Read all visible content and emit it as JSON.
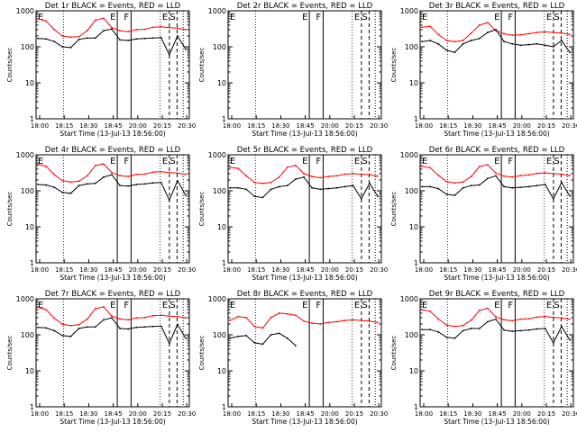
{
  "chart_data": {
    "type": "line",
    "yscale": "log",
    "ylim": [
      1,
      1000
    ],
    "y_ticks": [
      1,
      10,
      100,
      1000
    ],
    "y_tick_labels": [
      "1",
      "10",
      "100",
      "1000"
    ],
    "ylabel": "Counts/sec",
    "xlabel": "Start Time (13-Jul-13 18:56:00)",
    "x_tick_labels": [
      "18:00",
      "18:15",
      "18:30",
      "18:45",
      "20:00",
      "20:15",
      "20:30"
    ],
    "series_colors": {
      "events": "#000000",
      "lld": "#ff0000"
    },
    "markers": [
      {
        "label": "E",
        "style": "solid"
      },
      {
        "label": "F",
        "style": "solid"
      },
      {
        "label": "E",
        "style": "dashed"
      },
      {
        "label": "S",
        "style": "dashed"
      },
      {
        "label": "",
        "style": "dotted"
      }
    ],
    "panels": [
      {
        "title": "Det 1r BLACK = Events, RED = LLD",
        "has_data": true,
        "events": [
          170,
          165,
          140,
          100,
          95,
          160,
          175,
          175,
          280,
          310,
          155,
          150,
          165,
          170,
          175,
          180,
          60,
          200,
          85
        ],
        "lld": [
          600,
          520,
          300,
          200,
          185,
          190,
          280,
          550,
          620,
          340,
          280,
          265,
          300,
          305,
          350,
          360,
          340,
          330,
          300
        ]
      },
      {
        "title": "Det 2r BLACK = Events, RED = LLD",
        "has_data": false,
        "events": [],
        "lld": []
      },
      {
        "title": "Det 3r BLACK = Events, RED = LLD",
        "has_data": true,
        "events": [
          140,
          150,
          120,
          80,
          70,
          120,
          150,
          170,
          250,
          300,
          140,
          120,
          110,
          115,
          120,
          110,
          100,
          150,
          70
        ],
        "lld": [
          350,
          370,
          220,
          150,
          140,
          150,
          240,
          400,
          470,
          280,
          230,
          210,
          215,
          230,
          250,
          260,
          250,
          240,
          220
        ]
      },
      {
        "title": "Det 4r BLACK = Events, RED = LLD",
        "has_data": true,
        "events": [
          150,
          145,
          125,
          90,
          85,
          140,
          155,
          160,
          240,
          280,
          140,
          135,
          150,
          155,
          165,
          170,
          55,
          190,
          75
        ],
        "lld": [
          550,
          480,
          280,
          190,
          175,
          185,
          260,
          500,
          560,
          320,
          265,
          250,
          285,
          290,
          330,
          340,
          320,
          310,
          285
        ]
      },
      {
        "title": "Det 5r BLACK = Events, RED = LLD",
        "has_data": true,
        "events": [
          120,
          120,
          110,
          70,
          65,
          110,
          130,
          140,
          210,
          240,
          120,
          110,
          115,
          120,
          130,
          140,
          60,
          160,
          70
        ],
        "lld": [
          450,
          420,
          260,
          170,
          160,
          170,
          240,
          450,
          510,
          300,
          250,
          230,
          250,
          260,
          290,
          300,
          290,
          280,
          255
        ]
      },
      {
        "title": "Det 6r BLACK = Events, RED = LLD",
        "has_data": true,
        "events": [
          130,
          130,
          115,
          80,
          75,
          120,
          140,
          145,
          220,
          260,
          130,
          120,
          125,
          130,
          140,
          150,
          60,
          170,
          72
        ],
        "lld": [
          480,
          440,
          270,
          180,
          165,
          175,
          250,
          470,
          530,
          310,
          255,
          240,
          265,
          275,
          305,
          315,
          300,
          290,
          265
        ]
      },
      {
        "title": "Det 7r BLACK = Events, RED = LLD",
        "has_data": true,
        "events": [
          160,
          155,
          130,
          95,
          90,
          150,
          165,
          165,
          260,
          295,
          150,
          145,
          160,
          165,
          170,
          175,
          58,
          195,
          80
        ],
        "lld": [
          580,
          500,
          290,
          195,
          180,
          190,
          270,
          530,
          600,
          330,
          275,
          260,
          295,
          300,
          340,
          350,
          330,
          320,
          295
        ]
      },
      {
        "title": "Det 8r BLACK = Events, RED = LLD",
        "has_data": true,
        "events": [
          80,
          90,
          95,
          60,
          55,
          100,
          110,
          80,
          50,
          0,
          0,
          0,
          0,
          0,
          0,
          0,
          0,
          0,
          0
        ],
        "lld": [
          250,
          320,
          300,
          170,
          155,
          300,
          400,
          380,
          350,
          240,
          210,
          200,
          220,
          230,
          250,
          260,
          250,
          240,
          220
        ]
      },
      {
        "title": "Det 9r BLACK = Events, RED = LLD",
        "has_data": true,
        "events": [
          140,
          140,
          120,
          85,
          80,
          130,
          150,
          150,
          230,
          270,
          135,
          125,
          130,
          135,
          145,
          150,
          60,
          170,
          72
        ],
        "lld": [
          500,
          450,
          275,
          185,
          170,
          180,
          255,
          480,
          540,
          315,
          260,
          245,
          270,
          280,
          310,
          320,
          305,
          295,
          270
        ]
      }
    ]
  }
}
